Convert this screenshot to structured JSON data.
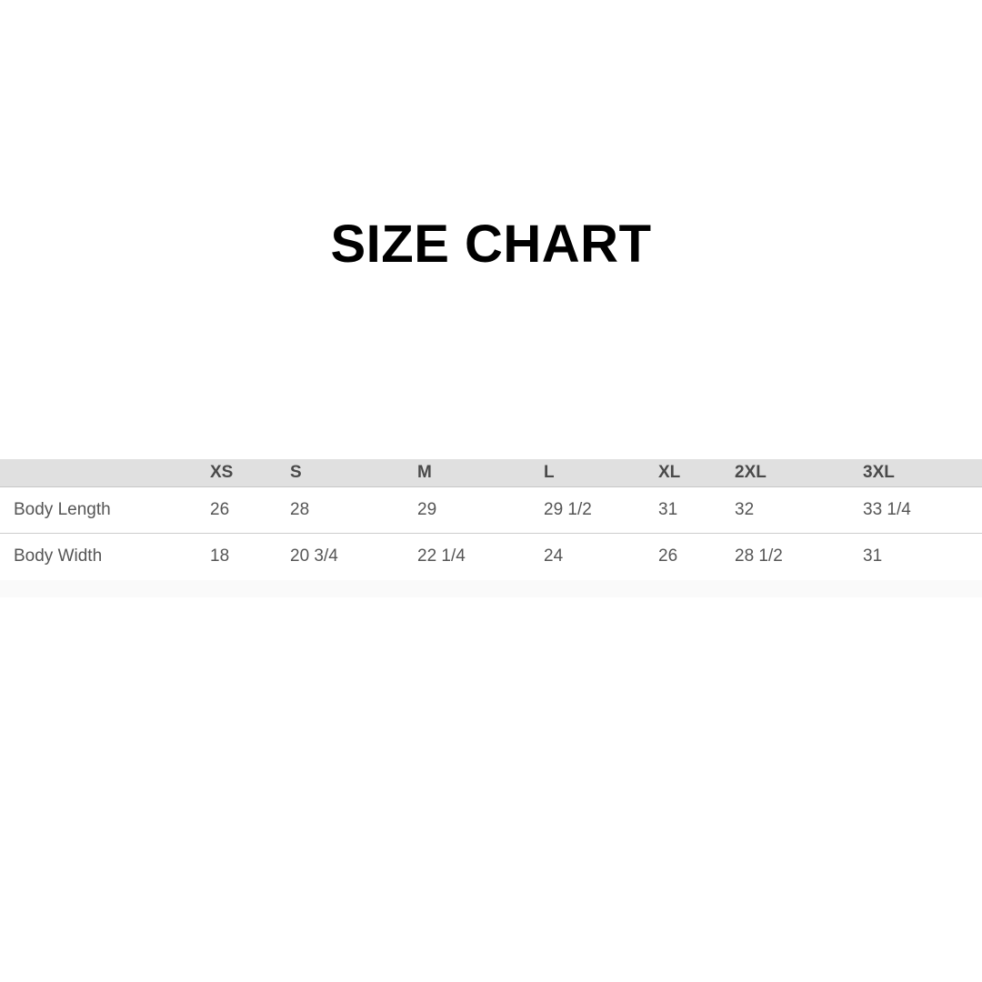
{
  "title": {
    "text": "SIZE CHART",
    "color": "#000000"
  },
  "colors": {
    "page_bg": "#ffffff",
    "header_bg": "#e0e0e0",
    "header_text": "#4a4a4a",
    "header_border": "#c6c6c6",
    "body_text": "#555555",
    "row_border": "#cccccc",
    "footer_stripe": "#fafafa"
  },
  "chart_data": {
    "type": "table",
    "title": "SIZE CHART",
    "columns": [
      "",
      "XS",
      "S",
      "M",
      "L",
      "XL",
      "2XL",
      "3XL"
    ],
    "rows": [
      {
        "label": "Body Length",
        "values": [
          "26",
          "28",
          "29",
          "29 1/2",
          "31",
          "32",
          "33 1/4"
        ]
      },
      {
        "label": "Body Width",
        "values": [
          "18",
          "20 3/4",
          "22 1/4",
          "24",
          "26",
          "28 1/2",
          "31"
        ]
      }
    ],
    "layout_hints": {
      "header_alignment": "left",
      "cell_alignment": "left",
      "grid": "horizontal-rules-only"
    }
  }
}
